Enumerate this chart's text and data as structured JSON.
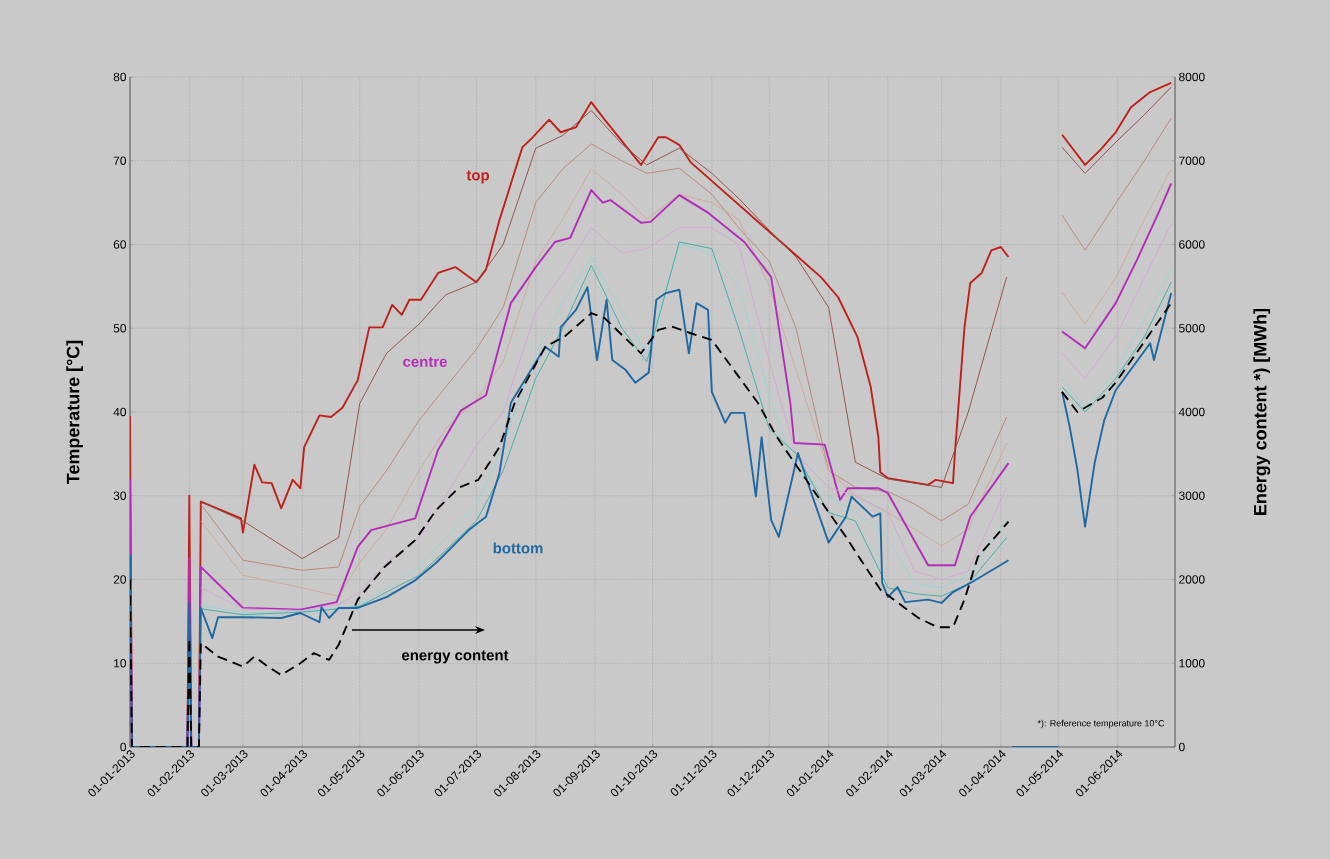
{
  "chart_data": {
    "type": "line",
    "ylabel": "Temperature [°C]",
    "y2label": "Energy content *) [MWh]",
    "annotations": [
      "*): Reference temperature 10°C"
    ],
    "xlim": [
      "2013-01-01",
      "2014-07-01"
    ],
    "xticks": [
      {
        "value": "2013-01-01",
        "label": "01-01-2013"
      },
      {
        "value": "2013-02-01",
        "label": "01-02-2013"
      },
      {
        "value": "2013-03-01",
        "label": "01-03-2013"
      },
      {
        "value": "2013-04-01",
        "label": "01-04-2013"
      },
      {
        "value": "2013-05-01",
        "label": "01-05-2013"
      },
      {
        "value": "2013-06-01",
        "label": "01-06-2013"
      },
      {
        "value": "2013-07-01",
        "label": "01-07-2013"
      },
      {
        "value": "2013-08-01",
        "label": "01-08-2013"
      },
      {
        "value": "2013-09-01",
        "label": "01-09-2013"
      },
      {
        "value": "2013-10-01",
        "label": "01-10-2013"
      },
      {
        "value": "2013-11-01",
        "label": "01-11-2013"
      },
      {
        "value": "2013-12-01",
        "label": "01-12-2013"
      },
      {
        "value": "2014-01-01",
        "label": "01-01-2014"
      },
      {
        "value": "2014-02-01",
        "label": "01-02-2014"
      },
      {
        "value": "2014-03-01",
        "label": "01-03-2014"
      },
      {
        "value": "2014-04-01",
        "label": "01-04-2014"
      },
      {
        "value": "2014-05-01",
        "label": "01-05-2014"
      },
      {
        "value": "2014-06-01",
        "label": "01-06-2014"
      }
    ],
    "ylim": [
      0,
      80
    ],
    "yticks": [
      0,
      10,
      20,
      30,
      40,
      50,
      60,
      70,
      80
    ],
    "y2lim": [
      0,
      8000
    ],
    "y2ticks": [
      0,
      1000,
      2000,
      3000,
      4000,
      5000,
      6000,
      7000,
      8000
    ],
    "grid": true,
    "line_style": "solid",
    "x": [
      "2013-02-07",
      "2013-03-01",
      "2013-04-01",
      "2013-04-20",
      "2013-05-01",
      "2013-05-15",
      "2013-06-01",
      "2013-06-15",
      "2013-07-01",
      "2013-07-15",
      "2013-08-01",
      "2013-08-15",
      "2013-08-30",
      "2013-09-15",
      "2013-09-28",
      "2013-10-15",
      "2013-11-01",
      "2013-11-15",
      "2013-12-01",
      "2013-12-15",
      "2014-01-01",
      "2014-01-15",
      "2014-02-01",
      "2014-02-15",
      "2014-03-01",
      "2014-03-15",
      "2014-04-04",
      "2014-04-15",
      "2014-05-03",
      "2014-05-15",
      "2014-05-31",
      "2014-06-15",
      "2014-06-29"
    ],
    "series": [
      {
        "name": "top",
        "color": "#c0201c",
        "x": [
          "2013-01-01",
          "2013-01-02",
          "2013-01-31",
          "2013-02-01",
          "2013-02-02",
          "2013-02-06",
          "2013-02-07",
          "2013-02-28",
          "2013-03-01",
          "2013-03-07",
          "2013-03-11",
          "2013-03-16",
          "2013-03-21",
          "2013-03-27",
          "2013-03-31",
          "2013-04-02",
          "2013-04-10",
          "2013-04-16",
          "2013-04-22",
          "2013-04-30",
          "2013-05-06",
          "2013-05-13",
          "2013-05-18",
          "2013-05-23",
          "2013-05-27",
          "2013-06-02",
          "2013-06-11",
          "2013-06-20",
          "2013-07-01",
          "2013-07-06",
          "2013-07-13",
          "2013-07-25",
          "2013-07-30",
          "2013-08-08",
          "2013-08-14",
          "2013-08-22",
          "2013-08-30",
          "2013-09-06",
          "2013-09-25",
          "2013-10-04",
          "2013-10-08",
          "2013-10-15",
          "2013-10-21",
          "2013-12-28",
          "2014-01-06",
          "2014-01-16",
          "2014-01-23",
          "2014-01-27",
          "2014-01-28",
          "2014-02-01",
          "2014-02-22",
          "2014-02-26",
          "2014-03-07",
          "2014-03-08",
          "2014-03-13",
          "2014-03-16",
          "2014-03-22",
          "2014-03-27",
          "2014-04-01",
          "2014-04-05",
          "2014-04-15",
          "2014-05-03",
          "2014-05-15",
          "2014-05-23",
          "2014-05-31",
          "2014-06-08",
          "2014-06-18",
          "2014-06-29"
        ],
        "values": [
          39.5,
          0,
          0,
          30,
          0,
          0,
          29.3,
          27.3,
          25.6,
          33.7,
          31.6,
          31.5,
          28.5,
          31.9,
          30.9,
          35.8,
          39.6,
          39.4,
          40.5,
          43.8,
          50.1,
          50.1,
          52.8,
          51.6,
          53.4,
          53.4,
          56.6,
          57.3,
          55.5,
          57,
          62.9,
          71.6,
          72.7,
          74.9,
          73.4,
          74,
          77,
          74.9,
          69.5,
          72.8,
          72.8,
          71.9,
          69.8,
          56.1,
          53.7,
          49,
          43,
          37,
          32.8,
          32.1,
          31.3,
          31.9,
          31.5,
          35.1,
          50.1,
          55.4,
          56.6,
          59.3,
          59.7,
          58.5,
          null,
          73.1,
          69.5,
          71.3,
          73.4,
          76.4,
          78.2,
          79.3
        ]
      },
      {
        "color": "#8c4a3c",
        "values": [
          29.3,
          27,
          22.5,
          25,
          41,
          47,
          50.5,
          54,
          55.5,
          60,
          71.5,
          73,
          76,
          72,
          69.5,
          71.5,
          68.5,
          65.5,
          61.7,
          58.5,
          52.5,
          34,
          32,
          31.5,
          31,
          40,
          56.1,
          null,
          71.6,
          68.5,
          72.2,
          75.5,
          78.8
        ]
      },
      {
        "color": "#b88474",
        "values": [
          29,
          22.3,
          21.1,
          21.5,
          28.7,
          33,
          39,
          43,
          47.5,
          52.5,
          65,
          69,
          72,
          70,
          68.5,
          69.1,
          66,
          62,
          58,
          50,
          33,
          31,
          30.5,
          29,
          27,
          29,
          39.4,
          null,
          63.5,
          59.3,
          64.9,
          70,
          75.1
        ]
      },
      {
        "color": "#cfa898",
        "values": [
          27,
          20.5,
          19,
          18,
          22,
          26,
          33,
          38,
          41.5,
          46,
          58,
          63,
          69,
          66,
          63,
          66,
          65,
          63,
          55,
          45,
          33,
          30,
          28,
          26,
          24,
          26,
          36.3,
          null,
          54.3,
          50.5,
          56,
          63,
          69
        ]
      },
      {
        "name": "centre",
        "color": "#b22cb8",
        "x": [
          "2013-01-01",
          "2013-01-02",
          "2013-01-31",
          "2013-02-01",
          "2013-02-02",
          "2013-02-06",
          "2013-02-07",
          "2013-03-01",
          "2013-03-31",
          "2013-04-19",
          "2013-04-30",
          "2013-05-07",
          "2013-05-30",
          "2013-06-11",
          "2013-06-23",
          "2013-07-06",
          "2013-07-19",
          "2013-08-01",
          "2013-08-11",
          "2013-08-19",
          "2013-08-30",
          "2013-09-05",
          "2013-09-09",
          "2013-09-25",
          "2013-09-30",
          "2013-10-15",
          "2013-10-30",
          "2013-11-18",
          "2013-12-02",
          "2013-12-12",
          "2013-12-14",
          "2013-12-30",
          "2014-01-07",
          "2014-01-11",
          "2014-01-27",
          "2014-02-01",
          "2014-02-22",
          "2014-03-08",
          "2014-03-16",
          "2014-04-05",
          "2014-04-15",
          "2014-05-03",
          "2014-05-15",
          "2014-05-31",
          "2014-06-11",
          "2014-06-23",
          "2014-06-29"
        ],
        "values": [
          32,
          0,
          0,
          22.5,
          0,
          0,
          21.5,
          16.6,
          16.4,
          17.3,
          23.9,
          25.9,
          27.3,
          35.5,
          40.2,
          42,
          53,
          57.3,
          60.3,
          60.8,
          66.5,
          65,
          65.3,
          62.6,
          62.7,
          65.9,
          63.8,
          60.3,
          56.1,
          41.1,
          36.3,
          36.1,
          29.5,
          30.9,
          30.9,
          30.3,
          21.7,
          21.7,
          27.5,
          33.9,
          null,
          49.6,
          47.6,
          53,
          58.1,
          64.1,
          67.3
        ]
      },
      {
        "color": "#d6a6d6",
        "values": [
          19,
          16.5,
          16.3,
          17,
          18.5,
          22,
          25,
          30,
          36,
          40,
          52,
          56.5,
          62,
          59,
          59.5,
          62,
          62,
          60,
          46,
          35,
          31,
          30,
          28,
          21,
          20,
          21,
          31,
          null,
          47,
          44,
          49,
          56,
          62.5
        ]
      },
      {
        "color": "#98d4d4",
        "values": [
          17,
          16,
          16.2,
          16.5,
          17,
          19,
          21.5,
          25,
          29,
          36,
          47,
          53,
          58.5,
          52,
          47,
          60,
          59,
          55,
          42,
          33,
          30,
          28,
          25,
          19.5,
          19,
          20.5,
          27,
          null,
          44,
          40.5,
          45,
          51,
          57
        ]
      },
      {
        "color": "#38b0a4",
        "values": [
          16.5,
          15.8,
          16.1,
          16.5,
          16.8,
          18.5,
          20.5,
          23.5,
          27,
          33,
          44,
          50,
          57.5,
          50,
          46,
          60.3,
          59.5,
          50,
          38,
          35,
          28,
          27,
          19,
          18.3,
          18,
          19.5,
          25,
          null,
          43,
          40,
          44,
          49,
          55.5
        ]
      },
      {
        "name": "bottom",
        "color": "#1f68a0",
        "x": [
          "2013-01-01",
          "2013-01-02",
          "2013-01-31",
          "2013-02-01",
          "2013-02-02",
          "2013-02-06",
          "2013-02-07",
          "2013-02-13",
          "2013-02-16",
          "2013-03-01",
          "2013-03-21",
          "2013-03-31",
          "2013-04-10",
          "2013-04-11",
          "2013-04-15",
          "2013-04-20",
          "2013-04-30",
          "2013-05-15",
          "2013-05-30",
          "2013-06-10",
          "2013-06-27",
          "2013-07-06",
          "2013-07-13",
          "2013-07-19",
          "2013-08-06",
          "2013-08-13",
          "2013-08-14",
          "2013-08-22",
          "2013-08-28",
          "2013-09-02",
          "2013-09-07",
          "2013-09-10",
          "2013-09-17",
          "2013-09-22",
          "2013-09-29",
          "2013-10-03",
          "2013-10-08",
          "2013-10-15",
          "2013-10-20",
          "2013-10-24",
          "2013-10-30",
          "2013-11-01",
          "2013-11-08",
          "2013-11-11",
          "2013-11-18",
          "2013-11-24",
          "2013-11-27",
          "2013-12-02",
          "2013-12-06",
          "2013-12-16",
          "2013-12-23",
          "2014-01-01",
          "2014-01-10",
          "2014-01-13",
          "2014-01-24",
          "2014-01-28",
          "2014-01-29",
          "2014-02-01",
          "2014-02-06",
          "2014-02-10",
          "2014-02-22",
          "2014-03-01",
          "2014-03-07",
          "2014-03-17",
          "2014-04-05",
          "2014-04-06",
          "2014-04-07",
          "2014-05-01",
          "2014-05-02",
          "2014-05-03",
          "2014-05-07",
          "2014-05-11",
          "2014-05-15",
          "2014-05-20",
          "2014-05-25",
          "2014-05-31",
          "2014-06-18",
          "2014-06-20",
          "2014-06-29"
        ],
        "values": [
          23,
          0,
          0,
          17.2,
          0,
          0,
          16.6,
          13,
          15.5,
          15.5,
          15.4,
          16,
          14.9,
          16.7,
          15.4,
          16.6,
          16.6,
          17.9,
          19.9,
          22,
          25.9,
          27.5,
          32.7,
          41.1,
          47.8,
          46.6,
          50.1,
          52.2,
          54.9,
          46.2,
          53.4,
          46.2,
          45,
          43.5,
          44.7,
          53.4,
          54.2,
          54.6,
          47,
          53,
          52.2,
          42.4,
          38.7,
          39.9,
          39.9,
          29.9,
          37,
          27.1,
          25.1,
          35.1,
          30.3,
          24.4,
          27.5,
          29.9,
          27.5,
          27.9,
          19.6,
          17.9,
          19.1,
          17.3,
          17.6,
          17.2,
          18.5,
          19.7,
          22.3,
          null,
          0,
          0,
          null,
          42.4,
          38.2,
          33.1,
          26.3,
          33.9,
          39,
          42.6,
          48.2,
          46.2,
          54.2
        ]
      },
      {
        "name": "energy content",
        "color": "#000000",
        "axis": "y2",
        "line_style": "dashed",
        "x": [
          "2013-01-01",
          "2013-01-02",
          "2013-01-31",
          "2013-02-01",
          "2013-02-02",
          "2013-02-06",
          "2013-02-07",
          "2013-02-16",
          "2013-03-01",
          "2013-03-07",
          "2013-03-14",
          "2013-03-21",
          "2013-03-31",
          "2013-04-07",
          "2013-04-15",
          "2013-04-20",
          "2013-04-30",
          "2013-05-14",
          "2013-05-30",
          "2013-06-10",
          "2013-06-22",
          "2013-07-02",
          "2013-07-13",
          "2013-07-21",
          "2013-08-06",
          "2013-08-16",
          "2013-08-30",
          "2013-09-06",
          "2013-09-25",
          "2013-10-04",
          "2013-10-11",
          "2013-10-21",
          "2013-11-01",
          "2013-11-25",
          "2013-12-05",
          "2013-12-23",
          "2014-01-10",
          "2014-01-28",
          "2014-02-17",
          "2014-02-27",
          "2014-03-07",
          "2014-03-13",
          "2014-03-20",
          "2014-04-05",
          "2014-04-15",
          "2014-05-03",
          "2014-05-11",
          "2014-05-24",
          "2014-05-31",
          "2014-06-18",
          "2014-06-29"
        ],
        "values": [
          2000,
          0,
          0,
          1300,
          0,
          0,
          1240,
          1080,
          960,
          1080,
          960,
          860,
          1000,
          1120,
          1040,
          1220,
          1760,
          2150,
          2470,
          2830,
          3100,
          3190,
          3580,
          4110,
          4780,
          4900,
          5180,
          5120,
          4700,
          4980,
          5020,
          4940,
          4860,
          4110,
          3700,
          3100,
          2510,
          1880,
          1540,
          1430,
          1430,
          1760,
          2270,
          2690,
          null,
          4240,
          4000,
          4170,
          4350,
          4940,
          5300
        ]
      }
    ]
  }
}
